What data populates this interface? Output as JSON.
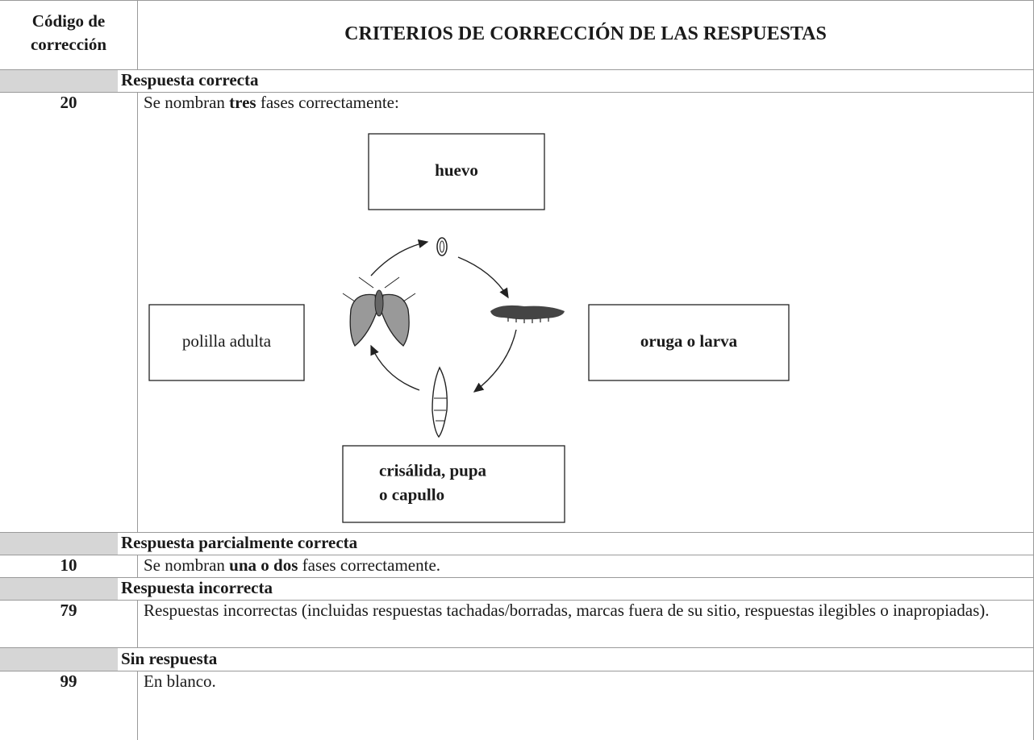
{
  "header": {
    "code_label": [
      "Código de",
      "corrección"
    ],
    "title": "CRITERIOS DE CORRECCIÓN DE LAS RESPUESTAS"
  },
  "sections": [
    {
      "heading": "Respuesta correcta",
      "code": "20",
      "text": [
        {
          "text": "Se nombran ",
          "bold": false
        },
        {
          "text": "tres",
          "bold": true
        },
        {
          "text": " fases correctamente:",
          "bold": false
        }
      ]
    },
    {
      "heading": "Respuesta parcialmente correcta",
      "code": "10",
      "text": [
        {
          "text": "Se nombran ",
          "bold": false
        },
        {
          "text": "una o dos",
          "bold": true
        },
        {
          "text": " fases correctamente.",
          "bold": false
        }
      ]
    },
    {
      "heading": "Respuesta incorrecta",
      "code": "79",
      "text": [
        {
          "text": "Respuestas incorrectas (incluidas respuestas tachadas/borradas, marcas fuera de su sitio, respuestas ilegibles o inapropiadas).",
          "bold": false
        }
      ]
    },
    {
      "heading": "Sin respuesta",
      "code": "99",
      "text": [
        {
          "text": "En blanco.",
          "bold": false
        }
      ]
    }
  ],
  "diagram": {
    "nodes": [
      {
        "label": [
          "huevo"
        ],
        "bold": true
      },
      {
        "label": [
          "oruga o larva"
        ],
        "bold": true
      },
      {
        "label": [
          "crisálida, pupa",
          "o capullo"
        ],
        "bold": true
      },
      {
        "label": [
          "polilla adulta"
        ],
        "bold": false
      }
    ]
  }
}
